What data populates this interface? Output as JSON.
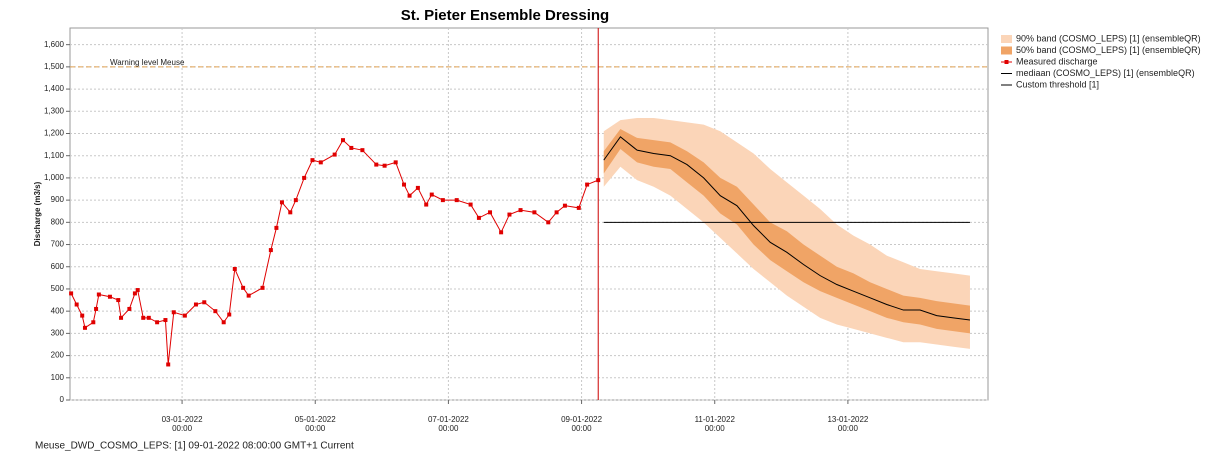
{
  "chart_data": {
    "type": "line",
    "title": "St. Pieter Ensemble Dressing",
    "ylabel": "Discharge (m3/s)",
    "footer": "Meuse_DWD_COSMO_LEPS: [1] 09-01-2022 08:00:00 GMT+1 Current",
    "xlim": [
      "2022-01-01T07:36",
      "2022-01-15T02:30"
    ],
    "ylim": [
      0,
      1675
    ],
    "yticks": [
      0,
      100,
      200,
      300,
      400,
      500,
      600,
      700,
      800,
      900,
      {
        "value": 1000,
        "label": "1,000"
      },
      {
        "value": 1100,
        "label": "1,100"
      },
      {
        "value": 1200,
        "label": "1,200"
      },
      {
        "value": 1300,
        "label": "1,300"
      },
      {
        "value": 1400,
        "label": "1,400"
      },
      {
        "value": 1500,
        "label": "1,500"
      },
      {
        "value": 1600,
        "label": "1,600"
      }
    ],
    "xticks": [
      {
        "value": "2022-01-03T00:00",
        "label": [
          "03-01-2022",
          "00:00"
        ]
      },
      {
        "value": "2022-01-05T00:00",
        "label": [
          "05-01-2022",
          "00:00"
        ]
      },
      {
        "value": "2022-01-07T00:00",
        "label": [
          "07-01-2022",
          "00:00"
        ]
      },
      {
        "value": "2022-01-09T00:00",
        "label": [
          "09-01-2022",
          "00:00"
        ]
      },
      {
        "value": "2022-01-11T00:00",
        "label": [
          "11-01-2022",
          "00:00"
        ]
      },
      {
        "value": "2022-01-13T00:00",
        "label": [
          "13-01-2022",
          "00:00"
        ]
      }
    ],
    "grid": true,
    "forecast_time": "2022-01-09T06:00",
    "forecast_time_color": "#cc0000",
    "annotations": [
      {
        "text": "Warning level Meuse",
        "value": 1500,
        "color": "#e0a050"
      }
    ],
    "forecast_x": [
      "2022-01-09T08:00",
      "2022-01-09T14:00",
      "2022-01-09T20:00",
      "2022-01-10T02:00",
      "2022-01-10T08:00",
      "2022-01-10T14:00",
      "2022-01-10T20:00",
      "2022-01-11T02:00",
      "2022-01-11T08:00",
      "2022-01-11T14:00",
      "2022-01-11T20:00",
      "2022-01-12T02:00",
      "2022-01-12T08:00",
      "2022-01-12T14:00",
      "2022-01-12T20:00",
      "2022-01-13T02:00",
      "2022-01-13T08:00",
      "2022-01-13T14:00",
      "2022-01-13T20:00",
      "2022-01-14T02:00",
      "2022-01-14T08:00",
      "2022-01-14T14:00",
      "2022-01-14T20:00"
    ],
    "series": [
      {
        "name": "90% band (COSMO_LEPS) [1]  (ensembleQR)",
        "kind": "band",
        "color": "#fbd5b8",
        "upper": [
          1210,
          1260,
          1270,
          1270,
          1260,
          1250,
          1240,
          1210,
          1160,
          1110,
          1040,
          980,
          920,
          860,
          790,
          740,
          700,
          650,
          620,
          590,
          580,
          570,
          560
        ],
        "lower": [
          960,
          1050,
          990,
          960,
          920,
          860,
          800,
          730,
          660,
          590,
          530,
          470,
          420,
          370,
          340,
          320,
          300,
          280,
          260,
          260,
          250,
          240,
          230
        ]
      },
      {
        "name": "50% band (COSMO_LEPS) [1]  (ensembleQR)",
        "kind": "band",
        "color": "#f0a466",
        "upper": [
          1120,
          1220,
          1180,
          1170,
          1160,
          1120,
          1070,
          1000,
          960,
          880,
          800,
          760,
          700,
          650,
          600,
          570,
          530,
          500,
          470,
          460,
          445,
          435,
          425
        ],
        "lower": [
          1020,
          1130,
          1070,
          1050,
          1040,
          980,
          920,
          840,
          790,
          700,
          630,
          580,
          530,
          490,
          460,
          430,
          400,
          370,
          350,
          340,
          320,
          310,
          300
        ]
      },
      {
        "name": "Measured discharge",
        "kind": "points",
        "color": "#e00000",
        "x": [
          "2022-01-01T08:00",
          "2022-01-01T10:00",
          "2022-01-01T12:00",
          "2022-01-01T13:00",
          "2022-01-01T16:00",
          "2022-01-01T17:00",
          "2022-01-01T18:00",
          "2022-01-01T22:00",
          "2022-01-02T01:00",
          "2022-01-02T02:00",
          "2022-01-02T05:00",
          "2022-01-02T07:00",
          "2022-01-02T08:00",
          "2022-01-02T10:00",
          "2022-01-02T12:00",
          "2022-01-02T15:00",
          "2022-01-02T18:00",
          "2022-01-02T19:00",
          "2022-01-02T21:00",
          "2022-01-03T01:00",
          "2022-01-03T05:00",
          "2022-01-03T08:00",
          "2022-01-03T12:00",
          "2022-01-03T15:00",
          "2022-01-03T17:00",
          "2022-01-03T19:00",
          "2022-01-03T22:00",
          "2022-01-04T00:00",
          "2022-01-04T05:00",
          "2022-01-04T08:00",
          "2022-01-04T10:00",
          "2022-01-04T12:00",
          "2022-01-04T15:00",
          "2022-01-04T17:00",
          "2022-01-04T20:00",
          "2022-01-04T23:00",
          "2022-01-05T02:00",
          "2022-01-05T07:00",
          "2022-01-05T10:00",
          "2022-01-05T13:00",
          "2022-01-05T17:00",
          "2022-01-05T22:00",
          "2022-01-06T01:00",
          "2022-01-06T05:00",
          "2022-01-06T08:00",
          "2022-01-06T10:00",
          "2022-01-06T13:00",
          "2022-01-06T16:00",
          "2022-01-06T18:00",
          "2022-01-06T22:00",
          "2022-01-07T03:00",
          "2022-01-07T08:00",
          "2022-01-07T11:00",
          "2022-01-07T15:00",
          "2022-01-07T19:00",
          "2022-01-07T22:00",
          "2022-01-08T02:00",
          "2022-01-08T07:00",
          "2022-01-08T12:00",
          "2022-01-08T15:00",
          "2022-01-08T18:00",
          "2022-01-08T23:00",
          "2022-01-09T02:00",
          "2022-01-09T06:00"
        ],
        "values": [
          480,
          430,
          380,
          325,
          350,
          410,
          475,
          465,
          450,
          370,
          410,
          480,
          495,
          370,
          370,
          350,
          360,
          160,
          395,
          380,
          430,
          440,
          400,
          350,
          385,
          590,
          505,
          470,
          505,
          675,
          775,
          890,
          845,
          900,
          1000,
          1080,
          1070,
          1105,
          1170,
          1135,
          1125,
          1060,
          1055,
          1070,
          970,
          920,
          955,
          880,
          925,
          900,
          900,
          880,
          820,
          845,
          755,
          835,
          855,
          845,
          800,
          845,
          875,
          865,
          970,
          990
        ]
      },
      {
        "name": "mediaan (COSMO_LEPS) [1]  (ensembleQR)",
        "kind": "line",
        "color": "#000000",
        "values": [
          1080,
          1185,
          1125,
          1110,
          1100,
          1060,
          1000,
          920,
          875,
          785,
          710,
          665,
          610,
          560,
          520,
          490,
          460,
          430,
          405,
          405,
          380,
          370,
          360
        ]
      },
      {
        "name": "Custom threshold [1]",
        "kind": "line",
        "color": "#000000",
        "x": [
          "2022-01-09T08:00",
          "2022-01-14T20:00"
        ],
        "values": [
          800,
          800
        ]
      }
    ]
  }
}
